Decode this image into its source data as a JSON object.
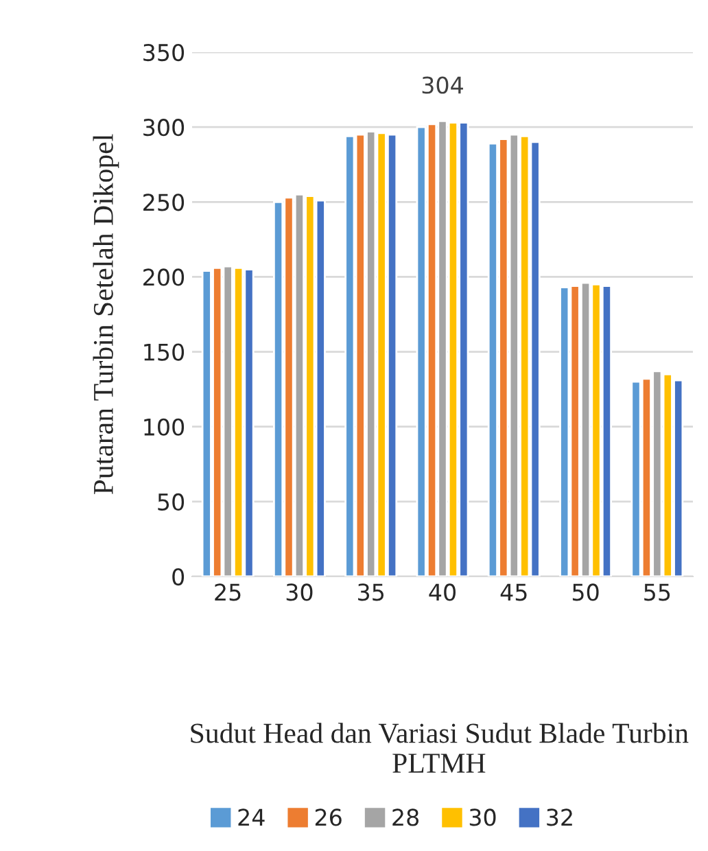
{
  "chart_data": {
    "type": "bar",
    "xlabel": "Sudut Head dan Variasi Sudut Blade Turbin PLTMH",
    "ylabel": "Putaran Turbin Setelah Dikopel",
    "categories": [
      "25",
      "30",
      "35",
      "40",
      "45",
      "50",
      "55"
    ],
    "series": [
      {
        "name": "24",
        "color": "#5b9bd5",
        "values": [
          204,
          250,
          294,
          300,
          289,
          193,
          130
        ]
      },
      {
        "name": "26",
        "color": "#ed7d31",
        "values": [
          206,
          253,
          295,
          302,
          292,
          194,
          132
        ]
      },
      {
        "name": "28",
        "color": "#a5a5a5",
        "values": [
          207,
          255,
          297,
          304,
          295,
          196,
          137
        ],
        "value_labels": [
          null,
          null,
          null,
          "304",
          null,
          null,
          null
        ]
      },
      {
        "name": "30",
        "color": "#ffc000",
        "values": [
          206,
          254,
          296,
          303,
          294,
          195,
          135
        ]
      },
      {
        "name": "32",
        "color": "#4472c4",
        "values": [
          205,
          251,
          295,
          303,
          290,
          194,
          131
        ]
      }
    ],
    "ylim": [
      0,
      350
    ],
    "yticks": [
      0,
      50,
      100,
      150,
      200,
      250,
      300,
      350
    ],
    "grid": "y",
    "legend": "bottom"
  }
}
